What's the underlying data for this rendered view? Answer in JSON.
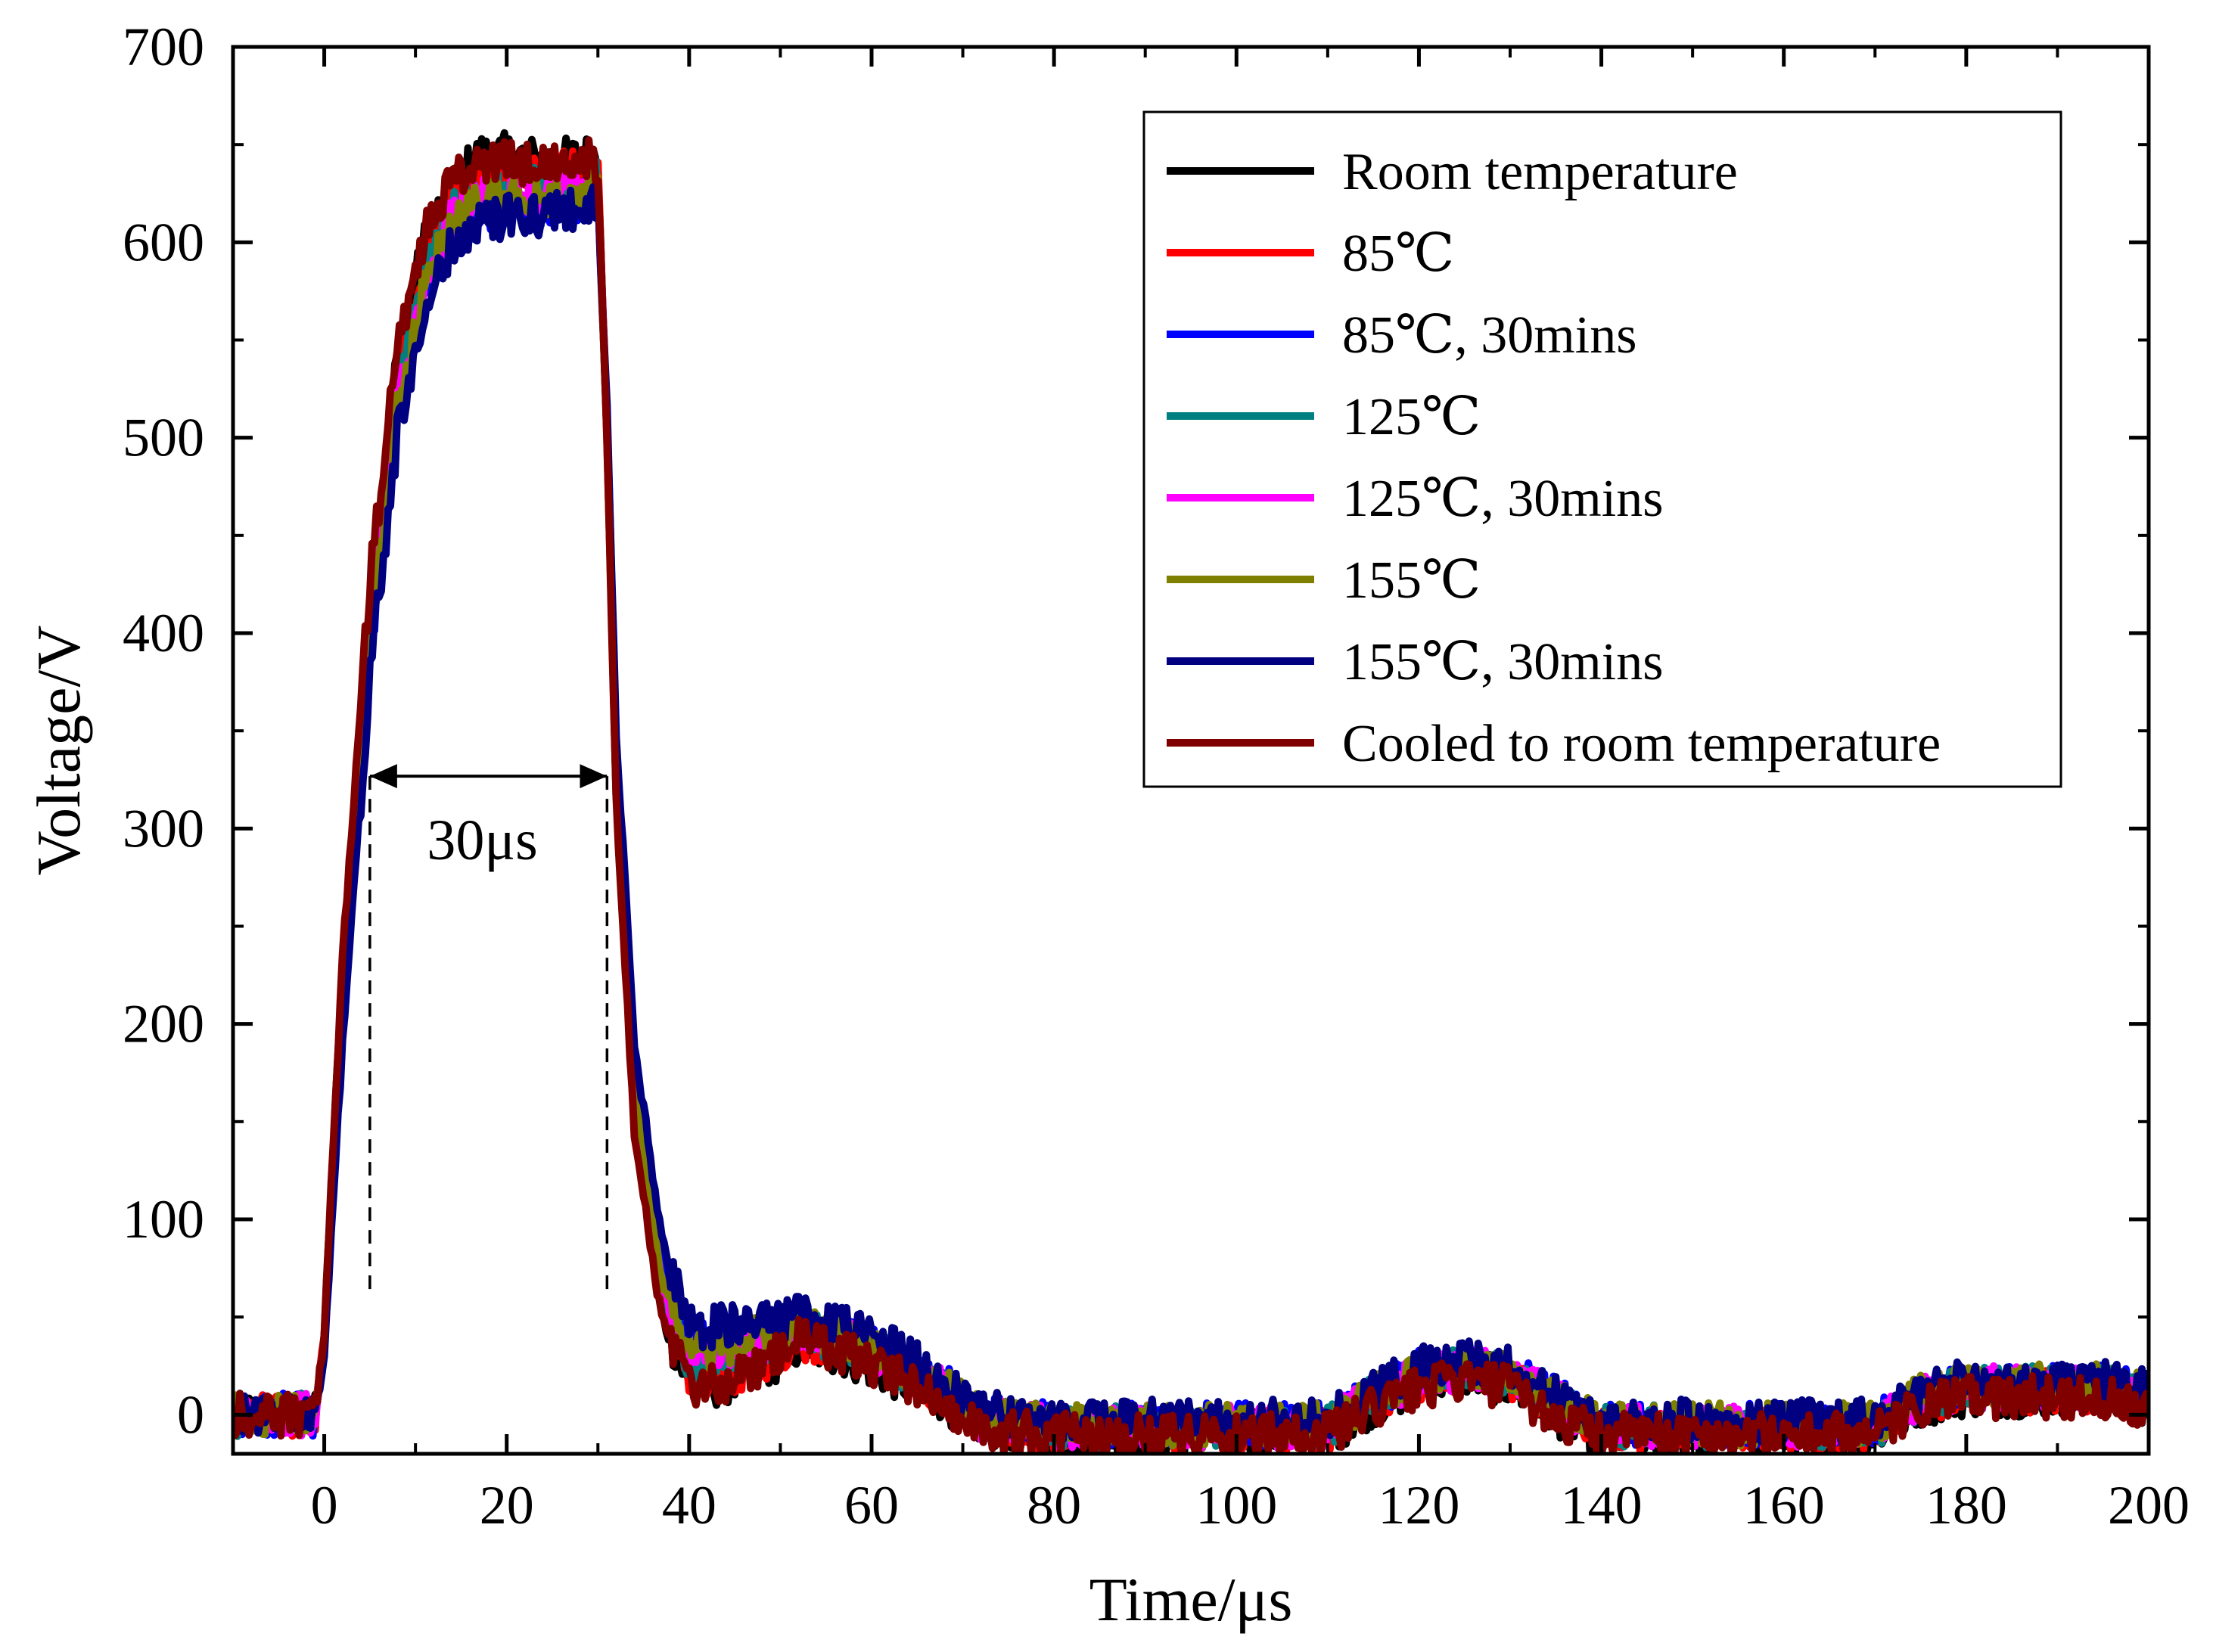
{
  "chart_data": {
    "type": "line",
    "title": "",
    "xlabel": "Time/μs",
    "ylabel": "Voltage/V",
    "xlim": [
      -10,
      200
    ],
    "ylim": [
      -20,
      700
    ],
    "xticks": [
      0,
      20,
      40,
      60,
      80,
      100,
      120,
      140,
      160,
      180,
      200
    ],
    "yticks": [
      0,
      100,
      200,
      300,
      400,
      500,
      600,
      700
    ],
    "grid": false,
    "legend_position": "top-right",
    "annotation": {
      "text": "30μs",
      "x_start": 5,
      "x_end": 31,
      "y": 350,
      "marker_x": [
        5,
        31
      ]
    },
    "series": [
      {
        "name": "Room temperature",
        "color": "#000000",
        "x": [
          -10,
          -1,
          0,
          2,
          5,
          8,
          11,
          14,
          17,
          20,
          25,
          30,
          31,
          32,
          34,
          37,
          40,
          43,
          47,
          52,
          57,
          62,
          67,
          72,
          80,
          90,
          100,
          110,
          115,
          120,
          125,
          130,
          135,
          140,
          150,
          160,
          170,
          175,
          180,
          185,
          190,
          195,
          200
        ],
        "y": [
          0,
          0,
          40,
          230,
          420,
          540,
          600,
          630,
          645,
          645,
          642,
          645,
          500,
          320,
          150,
          50,
          15,
          15,
          20,
          35,
          30,
          20,
          10,
          -5,
          -10,
          -10,
          -10,
          -10,
          5,
          15,
          20,
          15,
          0,
          -10,
          -10,
          -10,
          -10,
          5,
          10,
          10,
          10,
          10,
          5
        ]
      },
      {
        "name": "85℃",
        "color": "#ff0000",
        "x": [
          -10,
          -1,
          0,
          2,
          5,
          8,
          11,
          14,
          17,
          20,
          25,
          30,
          31,
          32,
          34,
          37,
          40,
          43,
          47,
          52,
          57,
          62,
          67,
          72,
          80,
          90,
          100,
          110,
          115,
          120,
          125,
          130,
          135,
          140,
          150,
          160,
          170,
          175,
          180,
          185,
          190,
          195,
          200
        ],
        "y": [
          0,
          0,
          40,
          220,
          410,
          530,
          590,
          620,
          632,
          635,
          636,
          638,
          500,
          320,
          155,
          55,
          20,
          18,
          25,
          38,
          35,
          25,
          12,
          -3,
          -8,
          -8,
          -8,
          -8,
          8,
          18,
          22,
          18,
          3,
          -8,
          -8,
          -8,
          -8,
          7,
          12,
          12,
          12,
          12,
          8
        ]
      },
      {
        "name": "85℃, 30mins",
        "color": "#0000ff",
        "x": [
          -10,
          -1,
          0,
          2,
          5,
          8,
          11,
          14,
          17,
          20,
          25,
          30,
          31,
          32,
          34,
          37,
          40,
          43,
          47,
          52,
          57,
          62,
          67,
          72,
          80,
          90,
          100,
          110,
          115,
          120,
          125,
          130,
          135,
          140,
          150,
          160,
          170,
          175,
          180,
          185,
          190,
          195,
          200
        ],
        "y": [
          0,
          0,
          35,
          200,
          390,
          510,
          575,
          605,
          615,
          618,
          620,
          622,
          510,
          340,
          175,
          75,
          35,
          38,
          42,
          45,
          40,
          32,
          18,
          0,
          -5,
          -5,
          -5,
          -5,
          10,
          22,
          25,
          22,
          8,
          -5,
          -5,
          -5,
          -5,
          10,
          15,
          15,
          15,
          15,
          10
        ]
      },
      {
        "name": "125℃",
        "color": "#008080",
        "x": [
          -10,
          -1,
          0,
          2,
          5,
          8,
          11,
          14,
          17,
          20,
          25,
          30,
          31,
          32,
          34,
          37,
          40,
          43,
          47,
          52,
          57,
          62,
          67,
          72,
          80,
          90,
          100,
          110,
          115,
          120,
          125,
          130,
          135,
          140,
          150,
          160,
          170,
          175,
          180,
          185,
          190,
          195,
          200
        ],
        "y": [
          0,
          0,
          38,
          210,
          400,
          520,
          585,
          615,
          625,
          628,
          630,
          632,
          505,
          330,
          165,
          65,
          28,
          30,
          36,
          42,
          38,
          28,
          15,
          -2,
          -6,
          -6,
          -6,
          -6,
          9,
          20,
          24,
          20,
          6,
          -6,
          -6,
          -6,
          -6,
          9,
          14,
          14,
          14,
          14,
          9
        ]
      },
      {
        "name": "125℃, 30mins",
        "color": "#ff00ff",
        "x": [
          -10,
          -1,
          0,
          2,
          5,
          8,
          11,
          14,
          17,
          20,
          25,
          30,
          31,
          32,
          34,
          37,
          40,
          43,
          47,
          52,
          57,
          62,
          67,
          72,
          80,
          90,
          100,
          110,
          115,
          120,
          125,
          130,
          135,
          140,
          150,
          160,
          170,
          175,
          180,
          185,
          190,
          195,
          200
        ],
        "y": [
          0,
          0,
          36,
          205,
          395,
          515,
          580,
          612,
          622,
          625,
          627,
          630,
          505,
          330,
          165,
          65,
          28,
          30,
          36,
          42,
          38,
          28,
          15,
          -2,
          -6,
          -6,
          -6,
          -6,
          9,
          20,
          24,
          20,
          6,
          -6,
          -6,
          -6,
          -6,
          9,
          14,
          14,
          14,
          14,
          9
        ]
      },
      {
        "name": "155℃",
        "color": "#808000",
        "x": [
          -10,
          -1,
          0,
          2,
          5,
          8,
          11,
          14,
          17,
          20,
          25,
          30,
          31,
          32,
          34,
          37,
          40,
          43,
          47,
          52,
          57,
          62,
          67,
          72,
          80,
          90,
          100,
          110,
          115,
          120,
          125,
          130,
          135,
          140,
          150,
          160,
          170,
          175,
          180,
          185,
          190,
          195,
          200
        ],
        "y": [
          0,
          0,
          36,
          205,
          395,
          515,
          580,
          610,
          620,
          622,
          625,
          628,
          508,
          335,
          170,
          70,
          32,
          35,
          40,
          45,
          40,
          30,
          16,
          -1,
          -5,
          -5,
          -5,
          -5,
          10,
          21,
          25,
          21,
          7,
          -5,
          -5,
          -5,
          -5,
          10,
          15,
          15,
          15,
          15,
          10
        ]
      },
      {
        "name": "155℃, 30mins",
        "color": "#000080",
        "x": [
          -10,
          -1,
          0,
          2,
          5,
          8,
          11,
          14,
          17,
          20,
          25,
          30,
          31,
          32,
          34,
          37,
          40,
          43,
          47,
          52,
          57,
          62,
          67,
          72,
          80,
          90,
          100,
          110,
          115,
          120,
          125,
          130,
          135,
          140,
          150,
          160,
          170,
          175,
          180,
          185,
          190,
          195,
          200
        ],
        "y": [
          0,
          0,
          32,
          190,
          380,
          500,
          565,
          598,
          610,
          613,
          615,
          618,
          515,
          350,
          190,
          90,
          45,
          45,
          48,
          50,
          45,
          35,
          20,
          2,
          -3,
          -3,
          -3,
          -3,
          12,
          24,
          27,
          24,
          10,
          -3,
          -3,
          -3,
          -3,
          12,
          17,
          17,
          17,
          17,
          12
        ]
      },
      {
        "name": "Cooled to room temperature",
        "color": "#800000",
        "x": [
          -10,
          -1,
          0,
          2,
          5,
          8,
          11,
          14,
          17,
          20,
          25,
          30,
          31,
          32,
          34,
          37,
          40,
          43,
          47,
          52,
          57,
          62,
          67,
          72,
          80,
          90,
          100,
          110,
          115,
          120,
          125,
          130,
          135,
          140,
          150,
          160,
          170,
          175,
          180,
          185,
          190,
          195,
          200
        ],
        "y": [
          0,
          0,
          42,
          235,
          425,
          545,
          605,
          632,
          640,
          641,
          640,
          642,
          500,
          315,
          145,
          48,
          15,
          15,
          22,
          38,
          32,
          22,
          10,
          -8,
          -10,
          -10,
          -10,
          -10,
          3,
          14,
          18,
          14,
          -2,
          -10,
          -10,
          -10,
          -10,
          4,
          9,
          9,
          9,
          9,
          4
        ]
      }
    ]
  }
}
